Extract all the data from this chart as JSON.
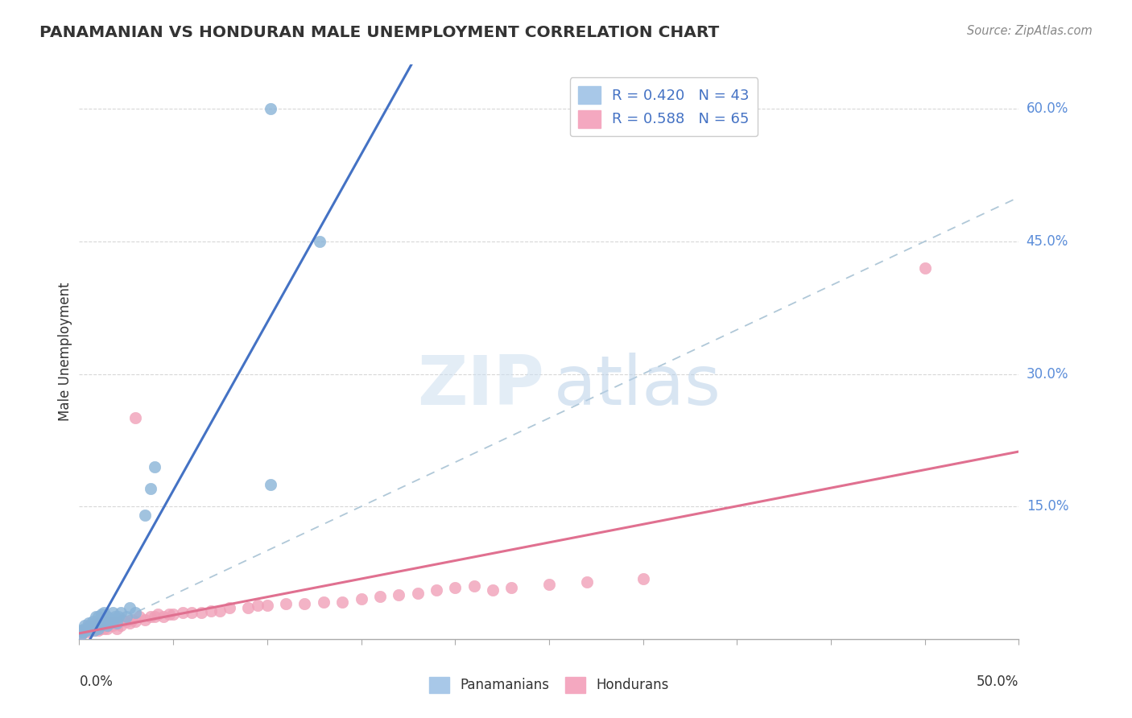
{
  "title": "PANAMANIAN VS HONDURAN MALE UNEMPLOYMENT CORRELATION CHART",
  "source_text": "Source: ZipAtlas.com",
  "ylabel": "Male Unemployment",
  "x_lim": [
    0.0,
    0.5
  ],
  "y_lim": [
    0.0,
    0.65
  ],
  "y_ticks": [
    0.15,
    0.3,
    0.45,
    0.6
  ],
  "y_tick_labels": [
    "15.0%",
    "30.0%",
    "45.0%",
    "60.0%"
  ],
  "pan_x": [
    0.001,
    0.001,
    0.002,
    0.003,
    0.003,
    0.004,
    0.005,
    0.005,
    0.006,
    0.007,
    0.008,
    0.008,
    0.009,
    0.009,
    0.01,
    0.01,
    0.01,
    0.011,
    0.011,
    0.012,
    0.012,
    0.013,
    0.013,
    0.014,
    0.015,
    0.015,
    0.016,
    0.017,
    0.018,
    0.018,
    0.019,
    0.02,
    0.021,
    0.022,
    0.025,
    0.027,
    0.03,
    0.035,
    0.038,
    0.04,
    0.102,
    0.128,
    0.102
  ],
  "pan_y": [
    0.005,
    0.01,
    0.008,
    0.012,
    0.015,
    0.01,
    0.012,
    0.018,
    0.015,
    0.02,
    0.01,
    0.018,
    0.015,
    0.025,
    0.012,
    0.018,
    0.025,
    0.015,
    0.022,
    0.018,
    0.028,
    0.02,
    0.03,
    0.022,
    0.015,
    0.025,
    0.018,
    0.022,
    0.02,
    0.03,
    0.025,
    0.018,
    0.025,
    0.03,
    0.025,
    0.035,
    0.03,
    0.14,
    0.17,
    0.195,
    0.6,
    0.45,
    0.175
  ],
  "hon_x": [
    0.001,
    0.002,
    0.003,
    0.004,
    0.005,
    0.005,
    0.006,
    0.007,
    0.008,
    0.009,
    0.01,
    0.01,
    0.011,
    0.012,
    0.013,
    0.014,
    0.015,
    0.015,
    0.016,
    0.017,
    0.018,
    0.019,
    0.02,
    0.021,
    0.022,
    0.023,
    0.025,
    0.027,
    0.028,
    0.03,
    0.032,
    0.035,
    0.038,
    0.04,
    0.042,
    0.045,
    0.048,
    0.05,
    0.055,
    0.06,
    0.065,
    0.07,
    0.075,
    0.08,
    0.09,
    0.095,
    0.1,
    0.11,
    0.12,
    0.13,
    0.14,
    0.15,
    0.16,
    0.17,
    0.18,
    0.19,
    0.2,
    0.21,
    0.22,
    0.23,
    0.25,
    0.27,
    0.3,
    0.45,
    0.03
  ],
  "hon_y": [
    0.005,
    0.008,
    0.01,
    0.012,
    0.008,
    0.015,
    0.01,
    0.012,
    0.01,
    0.015,
    0.01,
    0.018,
    0.012,
    0.015,
    0.012,
    0.018,
    0.012,
    0.02,
    0.015,
    0.018,
    0.015,
    0.02,
    0.012,
    0.018,
    0.015,
    0.022,
    0.02,
    0.018,
    0.022,
    0.02,
    0.025,
    0.022,
    0.025,
    0.025,
    0.028,
    0.025,
    0.028,
    0.028,
    0.03,
    0.03,
    0.03,
    0.032,
    0.032,
    0.035,
    0.035,
    0.038,
    0.038,
    0.04,
    0.04,
    0.042,
    0.042,
    0.045,
    0.048,
    0.05,
    0.052,
    0.055,
    0.058,
    0.06,
    0.055,
    0.058,
    0.062,
    0.065,
    0.068,
    0.42,
    0.25
  ],
  "blue_scatter_color": "#8ab4d8",
  "pink_scatter_color": "#f0a0b8",
  "blue_line_color": "#4472c4",
  "pink_line_color": "#e07090",
  "diag_color": "#b0c8d8",
  "grid_color": "#d8d8d8",
  "bg_color": "#ffffff",
  "right_label_color": "#5b8dd9",
  "title_color": "#333333",
  "source_color": "#888888",
  "axis_color": "#aaaaaa",
  "xlabel_color": "#333333"
}
